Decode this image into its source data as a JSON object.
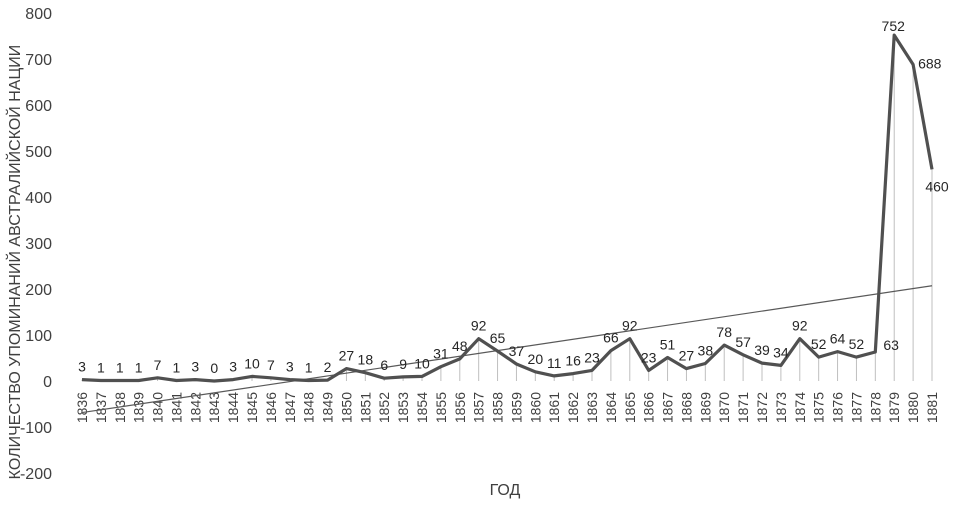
{
  "chart_data": {
    "type": "line",
    "xlabel": "ГОД",
    "ylabel": "КОЛИЧЕСТВО УПОМИНАНИЙ АВСТРАЛИЙСКОЙ НАЦИИ",
    "ylim": [
      -200,
      800
    ],
    "yticks": [
      800,
      700,
      600,
      500,
      400,
      300,
      200,
      100,
      0,
      -100,
      -200
    ],
    "grid": false,
    "drop_lines": true,
    "trendline": "linear",
    "categories": [
      "1836",
      "1837",
      "1838",
      "1839",
      "1840",
      "1841",
      "1842",
      "1843",
      "1844",
      "1845",
      "1846",
      "1847",
      "1848",
      "1849",
      "1850",
      "1851",
      "1852",
      "1853",
      "1854",
      "1855",
      "1856",
      "1857",
      "1858",
      "1859",
      "1860",
      "1861",
      "1862",
      "1863",
      "1864",
      "1865",
      "1866",
      "1867",
      "1868",
      "1869",
      "1870",
      "1871",
      "1872",
      "1873",
      "1874",
      "1875",
      "1876",
      "1877",
      "1878",
      "1879",
      "1880",
      "1881"
    ],
    "series": [
      {
        "values": [
          3,
          1,
          1,
          1,
          7,
          1,
          3,
          0,
          3,
          10,
          7,
          3,
          1,
          2,
          27,
          18,
          6,
          9,
          10,
          31,
          48,
          92,
          65,
          37,
          20,
          11,
          16,
          23,
          66,
          92,
          23,
          51,
          27,
          38,
          78,
          57,
          39,
          34,
          92,
          52,
          64,
          52,
          63,
          752,
          688,
          460
        ],
        "color": "#505050"
      }
    ],
    "colors": {
      "line": "#505050",
      "trend": "#595959",
      "drop": "#bfbfbf",
      "text": "#404040"
    }
  }
}
